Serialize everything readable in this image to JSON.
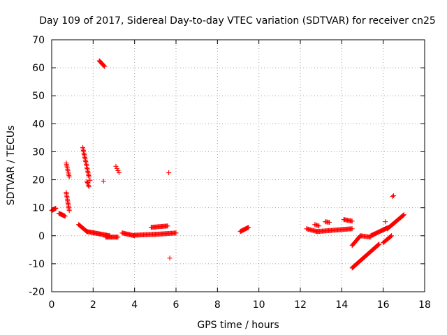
{
  "chart_data": {
    "type": "scatter",
    "title": "Day 109 of 2017, Sidereal Day-to-day VTEC variation (SDTVAR) for receiver cn25",
    "xlabel": "GPS time / hours",
    "ylabel": "SDTVAR / TECUs",
    "xlim": [
      0,
      18
    ],
    "ylim": [
      -20,
      70
    ],
    "xticks": [
      0,
      2,
      4,
      6,
      8,
      10,
      12,
      14,
      16,
      18
    ],
    "yticks": [
      -20,
      -10,
      0,
      10,
      20,
      30,
      40,
      50,
      60,
      70
    ],
    "grid": true,
    "marker": "+",
    "color": "#ff0000",
    "segments": [
      {
        "x0": 0.0,
        "y0": 9.0,
        "x1": 0.2,
        "y1": 9.8,
        "n": 8
      },
      {
        "x0": 0.35,
        "y0": 8.0,
        "x1": 0.65,
        "y1": 7.0,
        "n": 12
      },
      {
        "x0": 0.7,
        "y0": 26.0,
        "x1": 0.85,
        "y1": 21.0,
        "n": 10
      },
      {
        "x0": 0.7,
        "y0": 15.5,
        "x1": 0.85,
        "y1": 9.0,
        "n": 14
      },
      {
        "x0": 1.3,
        "y0": 4.0,
        "x1": 1.7,
        "y1": 1.5,
        "n": 14
      },
      {
        "x0": 1.5,
        "y0": 31.5,
        "x1": 1.8,
        "y1": 21.0,
        "n": 22
      },
      {
        "x0": 1.7,
        "y0": 19.5,
        "x1": 1.8,
        "y1": 17.5,
        "n": 5
      },
      {
        "x0": 1.7,
        "y0": 1.5,
        "x1": 2.8,
        "y1": 0.0,
        "n": 30
      },
      {
        "x0": 2.3,
        "y0": 62.5,
        "x1": 2.55,
        "y1": 60.5,
        "n": 10
      },
      {
        "x0": 2.6,
        "y0": -0.5,
        "x1": 3.2,
        "y1": -0.5,
        "n": 16
      },
      {
        "x0": 3.1,
        "y0": 24.8,
        "x1": 3.25,
        "y1": 22.5,
        "n": 4
      },
      {
        "x0": 3.4,
        "y0": 1.0,
        "x1": 4.0,
        "y1": 0.0,
        "n": 16
      },
      {
        "x0": 4.0,
        "y0": 0.2,
        "x1": 5.0,
        "y1": 0.5,
        "n": 24
      },
      {
        "x0": 4.8,
        "y0": 3.0,
        "x1": 5.6,
        "y1": 3.5,
        "n": 20
      },
      {
        "x0": 5.0,
        "y0": 0.5,
        "x1": 6.0,
        "y1": 1.0,
        "n": 24
      },
      {
        "x0": 9.1,
        "y0": 1.5,
        "x1": 9.5,
        "y1": 3.0,
        "n": 14
      },
      {
        "x0": 12.3,
        "y0": 2.5,
        "x1": 12.8,
        "y1": 1.5,
        "n": 12
      },
      {
        "x0": 12.8,
        "y0": 1.5,
        "x1": 14.5,
        "y1": 2.5,
        "n": 40
      },
      {
        "x0": 12.7,
        "y0": 4.0,
        "x1": 12.9,
        "y1": 3.5,
        "n": 5
      },
      {
        "x0": 13.2,
        "y0": 5.0,
        "x1": 13.4,
        "y1": 4.8,
        "n": 5
      },
      {
        "x0": 14.1,
        "y0": 5.8,
        "x1": 14.5,
        "y1": 5.2,
        "n": 10
      },
      {
        "x0": 14.5,
        "y0": -3.5,
        "x1": 14.9,
        "y1": 0.0,
        "n": 14
      },
      {
        "x0": 14.5,
        "y0": -11.5,
        "x1": 15.8,
        "y1": -3.0,
        "n": 50
      },
      {
        "x0": 14.9,
        "y0": 0.0,
        "x1": 15.4,
        "y1": -0.5,
        "n": 12
      },
      {
        "x0": 15.4,
        "y0": 0.0,
        "x1": 16.2,
        "y1": 2.8,
        "n": 24
      },
      {
        "x0": 16.0,
        "y0": -2.5,
        "x1": 16.4,
        "y1": 0.0,
        "n": 12
      },
      {
        "x0": 16.2,
        "y0": 2.5,
        "x1": 17.0,
        "y1": 7.5,
        "n": 28
      }
    ],
    "isolated_points": [
      {
        "x": 2.5,
        "y": 19.5
      },
      {
        "x": 5.65,
        "y": 22.5
      },
      {
        "x": 5.7,
        "y": -8.0
      },
      {
        "x": 16.1,
        "y": 5.0
      },
      {
        "x": 16.45,
        "y": 14.0
      },
      {
        "x": 16.5,
        "y": 14.3
      },
      {
        "x": 0.1,
        "y": 9.5
      },
      {
        "x": 1.85,
        "y": 19.8
      }
    ]
  }
}
